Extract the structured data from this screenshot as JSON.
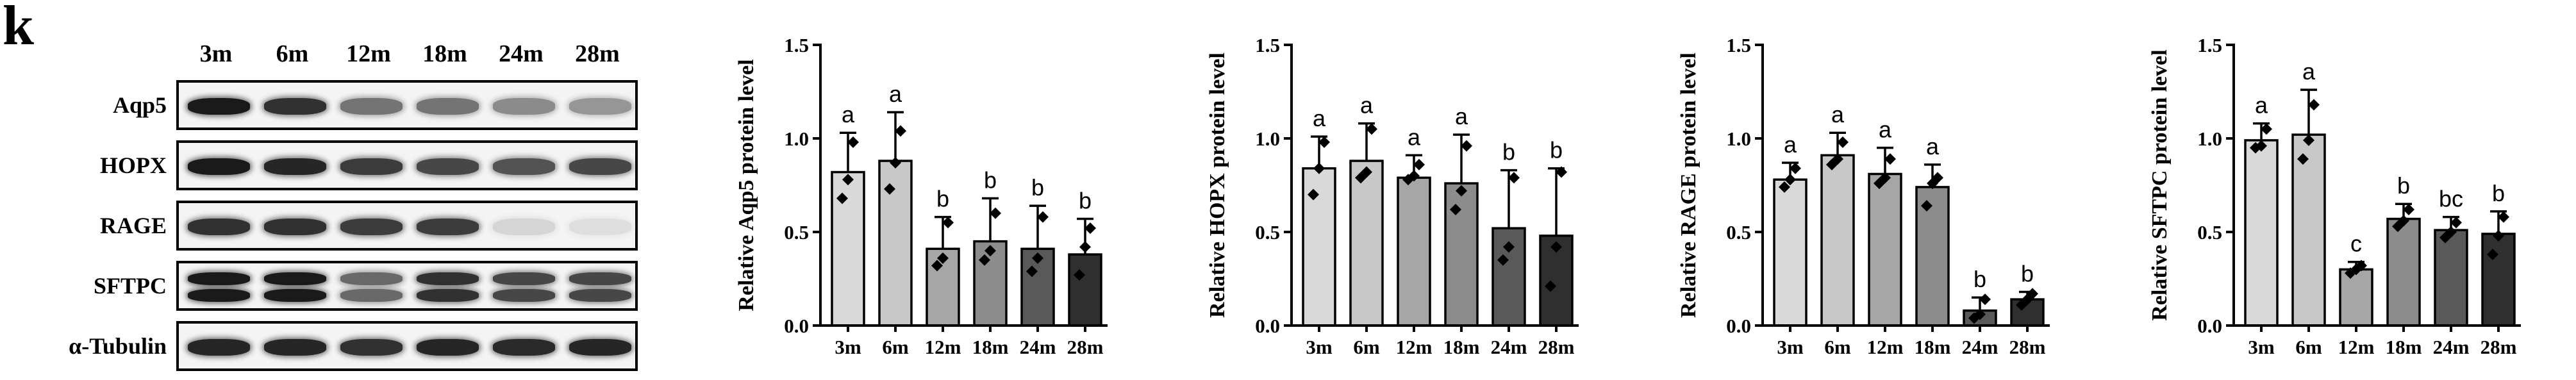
{
  "panel_label": "k",
  "blot": {
    "lanes": [
      "3m",
      "6m",
      "12m",
      "18m",
      "24m",
      "28m"
    ],
    "rows": [
      {
        "name": "Aqp5",
        "intensity": [
          0.95,
          0.85,
          0.55,
          0.55,
          0.45,
          0.4
        ],
        "double": false
      },
      {
        "name": "HOPX",
        "intensity": [
          0.95,
          0.9,
          0.8,
          0.75,
          0.7,
          0.75
        ],
        "double": false
      },
      {
        "name": "RAGE",
        "intensity": [
          0.85,
          0.85,
          0.8,
          0.8,
          0.12,
          0.08
        ],
        "double": false
      },
      {
        "name": "SFTPC",
        "intensity": [
          0.95,
          0.95,
          0.6,
          0.85,
          0.75,
          0.75
        ],
        "double": true
      },
      {
        "name": "α-Tubulin",
        "intensity": [
          0.9,
          0.9,
          0.85,
          0.9,
          0.88,
          0.9
        ],
        "double": false
      }
    ]
  },
  "colors": {
    "bars": [
      "#d9d9d9",
      "#c8c8c8",
      "#a6a6a6",
      "#8c8c8c",
      "#595959",
      "#2f2f2f"
    ],
    "axis": "#000000"
  },
  "chart_data": [
    {
      "type": "bar",
      "categories": [
        "3m",
        "6m",
        "12m",
        "18m",
        "24m",
        "28m"
      ],
      "values": [
        0.82,
        0.88,
        0.41,
        0.45,
        0.41,
        0.38
      ],
      "errors": [
        0.21,
        0.26,
        0.17,
        0.23,
        0.23,
        0.19
      ],
      "points": [
        [
          0.98,
          0.78,
          0.68
        ],
        [
          1.04,
          0.87,
          0.73
        ],
        [
          0.55,
          0.36,
          0.32
        ],
        [
          0.6,
          0.4,
          0.35
        ],
        [
          0.58,
          0.36,
          0.29
        ],
        [
          0.52,
          0.42,
          0.27
        ]
      ],
      "letters": [
        "a",
        "a",
        "b",
        "b",
        "b",
        "b"
      ],
      "ylabel": "Relative Aqp5 protein level",
      "ylim": [
        0,
        1.5
      ],
      "yticks": [
        "0.0",
        "0.5",
        "1.0",
        "1.5"
      ]
    },
    {
      "type": "bar",
      "categories": [
        "3m",
        "6m",
        "12m",
        "18m",
        "24m",
        "28m"
      ],
      "values": [
        0.84,
        0.88,
        0.79,
        0.76,
        0.52,
        0.48
      ],
      "errors": [
        0.17,
        0.2,
        0.12,
        0.26,
        0.31,
        0.36
      ],
      "points": [
        [
          0.98,
          0.84,
          0.7
        ],
        [
          1.05,
          0.82,
          0.79
        ],
        [
          0.86,
          0.8,
          0.78
        ],
        [
          0.96,
          0.72,
          0.62
        ],
        [
          0.79,
          0.42,
          0.35
        ],
        [
          0.82,
          0.42,
          0.21
        ]
      ],
      "letters": [
        "a",
        "a",
        "a",
        "a",
        "b",
        "b"
      ],
      "ylabel": "Relative HOPX protein level",
      "ylim": [
        0,
        1.5
      ],
      "yticks": [
        "0.0",
        "0.5",
        "1.0",
        "1.5"
      ]
    },
    {
      "type": "bar",
      "categories": [
        "3m",
        "6m",
        "12m",
        "18m",
        "24m",
        "28m"
      ],
      "values": [
        0.78,
        0.91,
        0.81,
        0.74,
        0.08,
        0.14
      ],
      "errors": [
        0.09,
        0.12,
        0.14,
        0.12,
        0.07,
        0.04
      ],
      "points": [
        [
          0.84,
          0.78,
          0.74
        ],
        [
          0.98,
          0.89,
          0.86
        ],
        [
          0.89,
          0.79,
          0.76
        ],
        [
          0.79,
          0.76,
          0.64
        ],
        [
          0.14,
          0.06,
          0.04
        ],
        [
          0.17,
          0.14,
          0.11
        ]
      ],
      "letters": [
        "a",
        "a",
        "a",
        "a",
        "b",
        "b"
      ],
      "ylabel": "Relative RAGE protein level",
      "ylim": [
        0,
        1.5
      ],
      "yticks": [
        "0.0",
        "0.5",
        "1.0",
        "1.5"
      ]
    },
    {
      "type": "bar",
      "categories": [
        "3m",
        "6m",
        "12m",
        "18m",
        "24m",
        "28m"
      ],
      "values": [
        0.99,
        1.02,
        0.3,
        0.57,
        0.51,
        0.49
      ],
      "errors": [
        0.09,
        0.24,
        0.04,
        0.08,
        0.07,
        0.12
      ],
      "points": [
        [
          1.05,
          0.96,
          0.95
        ],
        [
          1.18,
          0.99,
          0.89
        ],
        [
          0.32,
          0.3,
          0.28
        ],
        [
          0.62,
          0.56,
          0.53
        ],
        [
          0.55,
          0.5,
          0.47
        ],
        [
          0.58,
          0.48,
          0.38
        ]
      ],
      "letters": [
        "a",
        "a",
        "c",
        "b",
        "bc",
        "b"
      ],
      "ylabel": "Relative SFTPC protein level",
      "ylim": [
        0,
        1.5
      ],
      "yticks": [
        "0.0",
        "0.5",
        "1.0",
        "1.5"
      ]
    }
  ]
}
